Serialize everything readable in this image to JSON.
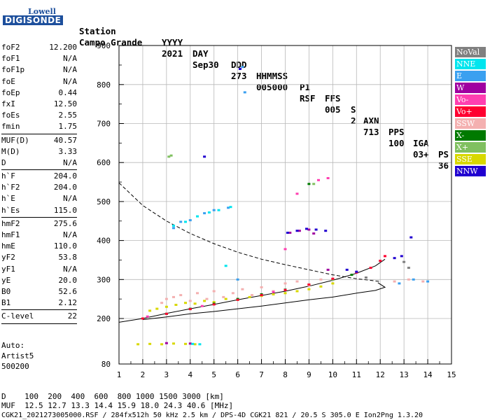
{
  "logo": {
    "line1": "Lowell",
    "line2": "DIGISONDE"
  },
  "header": {
    "row1": [
      "Station",
      "YYYY",
      "DAY",
      "DDD",
      "HHMMSS",
      "P1",
      "FFS",
      "S",
      "AXN",
      "PPS",
      "IGA",
      "PS"
    ],
    "row2": [
      "Campo Grande",
      "2021",
      "Sep30",
      "273",
      "005000",
      "RSF",
      "005",
      "2",
      "713",
      "100",
      "03+",
      "36"
    ]
  },
  "params": [
    {
      "k": "foF2",
      "v": "12.200"
    },
    {
      "k": "foF1",
      "v": "N/A"
    },
    {
      "k": "foF1p",
      "v": "N/A"
    },
    {
      "k": "foE",
      "v": "N/A"
    },
    {
      "k": "foEp",
      "v": "0.44"
    },
    {
      "k": "fxI",
      "v": "12.50"
    },
    {
      "k": "foEs",
      "v": "2.55"
    },
    {
      "k": "fmin",
      "v": "1.75"
    },
    {
      "sep": true
    },
    {
      "k": "MUF(D)",
      "v": "40.57"
    },
    {
      "k": "M(D)",
      "v": "3.33"
    },
    {
      "k": "D",
      "v": "N/A"
    },
    {
      "sep": true
    },
    {
      "k": "h`F",
      "v": "204.0"
    },
    {
      "k": "h`F2",
      "v": "204.0"
    },
    {
      "k": "h`E",
      "v": "N/A"
    },
    {
      "k": "h`Es",
      "v": "115.0"
    },
    {
      "sep": true
    },
    {
      "k": "hmF2",
      "v": "275.6"
    },
    {
      "k": "hmF1",
      "v": "N/A"
    },
    {
      "k": "hmE",
      "v": "110.0"
    },
    {
      "k": "yF2",
      "v": "53.8"
    },
    {
      "k": "yF1",
      "v": "N/A"
    },
    {
      "k": "yE",
      "v": "20.0"
    },
    {
      "k": "B0",
      "v": "52.6"
    },
    {
      "k": "B1",
      "v": "2.12"
    },
    {
      "sep": true
    },
    {
      "k": "C-level",
      "v": "22"
    },
    {
      "sep": true
    }
  ],
  "auto": {
    "line1": "Auto:",
    "line2": "Artist5",
    "line3": "500200"
  },
  "legend": [
    {
      "label": "NoVal",
      "color": "#808080"
    },
    {
      "label": "NNE",
      "color": "#00e5ee"
    },
    {
      "label": "E",
      "color": "#3aa0f0"
    },
    {
      "label": "W",
      "color": "#a000a0"
    },
    {
      "label": "Vo-",
      "color": "#ff3fb0"
    },
    {
      "label": "Vo+",
      "color": "#ff0030"
    },
    {
      "label": "SSW",
      "color": "#f4b0b0"
    },
    {
      "label": "X-",
      "color": "#007a00"
    },
    {
      "label": "X+",
      "color": "#80c060"
    },
    {
      "label": "SSE",
      "color": "#d8d800"
    },
    {
      "label": "NNW",
      "color": "#2000d0"
    }
  ],
  "footer": {
    "line1": "D    100  200  400  600  800 1000 1500 3000 [km]",
    "line2": "MUF  12.5 12.7 13.3 14.4 15.9 18.0 24.3 40.6 [MHz]",
    "line3": "CGK21_2021273005000.RSF / 284fx512h 50 kHz 2.5 km / DPS-4D CGK21 821 / 20.5 S 305.0 E Ion2Png 1.3.20"
  },
  "chart_data": {
    "type": "scatter",
    "x_ticks": [
      "1",
      "2",
      "3",
      "4",
      "5",
      "6",
      "7",
      "8",
      "9",
      "10",
      "11",
      "12",
      "13",
      "14",
      "15"
    ],
    "y_ticks": [
      "80",
      "200",
      "300",
      "400",
      "500",
      "600",
      "700",
      "800",
      "900"
    ],
    "xlim": [
      1,
      15
    ],
    "ylim": [
      80,
      900
    ],
    "grid": true,
    "series": [
      {
        "name": "SSW",
        "color": "#f4b0b0",
        "points": [
          [
            2.8,
            240
          ],
          [
            3.0,
            250
          ],
          [
            3.3,
            255
          ],
          [
            3.6,
            260
          ],
          [
            4.0,
            245
          ],
          [
            4.3,
            265
          ],
          [
            4.7,
            250
          ],
          [
            5.0,
            270
          ],
          [
            5.4,
            255
          ],
          [
            5.8,
            265
          ],
          [
            6.2,
            275
          ],
          [
            6.6,
            260
          ],
          [
            7.0,
            280
          ],
          [
            7.5,
            270
          ],
          [
            8.0,
            290
          ],
          [
            8.5,
            295
          ],
          [
            9.0,
            285
          ],
          [
            9.5,
            300
          ],
          [
            12.6,
            295
          ],
          [
            13.2,
            300
          ],
          [
            13.8,
            295
          ]
        ]
      },
      {
        "name": "SSE",
        "color": "#d8d800",
        "points": [
          [
            1.8,
            132
          ],
          [
            2.3,
            133
          ],
          [
            2.8,
            132
          ],
          [
            3.3,
            134
          ],
          [
            3.8,
            133
          ],
          [
            4.2,
            132
          ],
          [
            2.3,
            220
          ],
          [
            2.6,
            225
          ],
          [
            3.0,
            230
          ],
          [
            3.4,
            235
          ],
          [
            3.8,
            240
          ],
          [
            4.2,
            238
          ],
          [
            4.6,
            245
          ],
          [
            5.0,
            242
          ],
          [
            5.5,
            250
          ],
          [
            6.0,
            248
          ],
          [
            6.5,
            255
          ],
          [
            7.0,
            258
          ],
          [
            7.5,
            262
          ],
          [
            8.0,
            265
          ],
          [
            8.5,
            270
          ],
          [
            9.0,
            275
          ],
          [
            9.5,
            282
          ],
          [
            10.0,
            290
          ]
        ]
      },
      {
        "name": "X-",
        "color": "#007a00",
        "points": [
          [
            3.0,
            212
          ],
          [
            4.0,
            225
          ],
          [
            5.0,
            238
          ],
          [
            6.0,
            250
          ],
          [
            7.0,
            262
          ],
          [
            8.0,
            274
          ],
          [
            9.0,
            287
          ],
          [
            10.0,
            300
          ],
          [
            10.8,
            312
          ],
          [
            9.0,
            545
          ]
        ]
      },
      {
        "name": "X+",
        "color": "#80c060",
        "points": [
          [
            3.1,
            615
          ],
          [
            3.2,
            618
          ],
          [
            9.2,
            545
          ],
          [
            10.0,
            300
          ]
        ]
      },
      {
        "name": "Vo+",
        "color": "#ff0030",
        "points": [
          [
            2.0,
            200
          ],
          [
            3.0,
            212
          ],
          [
            4.0,
            224
          ],
          [
            5.0,
            236
          ],
          [
            6.0,
            248
          ],
          [
            7.0,
            260
          ],
          [
            8.0,
            273
          ],
          [
            9.0,
            287
          ],
          [
            10.0,
            302
          ],
          [
            11.0,
            318
          ],
          [
            11.6,
            330
          ],
          [
            12.0,
            348
          ],
          [
            12.2,
            360
          ]
        ]
      },
      {
        "name": "Vo-",
        "color": "#ff3fb0",
        "points": [
          [
            2.2,
            205
          ],
          [
            4.5,
            232
          ],
          [
            7.5,
            268
          ],
          [
            9.4,
            555
          ],
          [
            9.8,
            560
          ],
          [
            8.0,
            378
          ],
          [
            8.5,
            520
          ]
        ]
      },
      {
        "name": "W",
        "color": "#a000a0",
        "points": [
          [
            8.2,
            420
          ],
          [
            8.6,
            425
          ],
          [
            9.0,
            428
          ],
          [
            9.2,
            418
          ],
          [
            3.0,
            135
          ],
          [
            4.0,
            134
          ],
          [
            9.8,
            325
          ]
        ]
      },
      {
        "name": "E",
        "color": "#3aa0f0",
        "points": [
          [
            3.3,
            432
          ],
          [
            3.6,
            448
          ],
          [
            4.0,
            452
          ],
          [
            4.6,
            470
          ],
          [
            5.0,
            478
          ],
          [
            5.6,
            484
          ],
          [
            6.2,
            845
          ],
          [
            6.3,
            780
          ],
          [
            6.0,
            300
          ],
          [
            12.8,
            290
          ],
          [
            13.4,
            300
          ],
          [
            14.0,
            295
          ]
        ]
      },
      {
        "name": "NNE",
        "color": "#00e5ee",
        "points": [
          [
            3.3,
            438
          ],
          [
            3.8,
            448
          ],
          [
            4.3,
            462
          ],
          [
            4.8,
            472
          ],
          [
            5.2,
            478
          ],
          [
            5.7,
            486
          ],
          [
            5.5,
            335
          ],
          [
            4.1,
            133
          ],
          [
            4.4,
            132
          ]
        ]
      },
      {
        "name": "NNW",
        "color": "#2000d0",
        "points": [
          [
            8.1,
            420
          ],
          [
            8.5,
            425
          ],
          [
            8.9,
            430
          ],
          [
            9.3,
            428
          ],
          [
            9.7,
            425
          ],
          [
            10.6,
            325
          ],
          [
            11.0,
            320
          ],
          [
            12.6,
            355
          ],
          [
            12.9,
            360
          ],
          [
            13.3,
            408
          ],
          [
            4.6,
            615
          ],
          [
            6.1,
            840
          ]
        ]
      },
      {
        "name": "NoVal",
        "color": "#808080",
        "points": [
          [
            13.2,
            330
          ],
          [
            13.0,
            345
          ],
          [
            11.4,
            305
          ]
        ]
      }
    ],
    "curves": [
      {
        "name": "virtual-height trace",
        "style": "solid",
        "color": "#000",
        "points": [
          [
            1.0,
            190
          ],
          [
            2.0,
            200
          ],
          [
            3.0,
            213
          ],
          [
            4.0,
            225
          ],
          [
            5.0,
            236
          ],
          [
            6.0,
            248
          ],
          [
            7.0,
            259
          ],
          [
            8.0,
            270
          ],
          [
            9.0,
            283
          ],
          [
            10.0,
            298
          ],
          [
            11.0,
            316
          ],
          [
            11.8,
            335
          ],
          [
            12.2,
            352
          ]
        ]
      },
      {
        "name": "profile trace",
        "style": "solid",
        "color": "#000",
        "points": [
          [
            2.0,
            197
          ],
          [
            3.0,
            204
          ],
          [
            4.0,
            212
          ],
          [
            5.0,
            218
          ],
          [
            6.0,
            225
          ],
          [
            7.0,
            232
          ],
          [
            8.0,
            240
          ],
          [
            9.0,
            248
          ],
          [
            10.0,
            255
          ],
          [
            11.0,
            265
          ],
          [
            11.8,
            272
          ],
          [
            12.2,
            280
          ],
          [
            11.9,
            292
          ]
        ]
      },
      {
        "name": "MUF trace",
        "style": "dashed",
        "color": "#000",
        "points": [
          [
            1.0,
            548
          ],
          [
            2.0,
            490
          ],
          [
            3.0,
            450
          ],
          [
            4.0,
            418
          ],
          [
            5.0,
            392
          ],
          [
            6.0,
            370
          ],
          [
            7.0,
            352
          ],
          [
            8.0,
            338
          ],
          [
            9.0,
            325
          ],
          [
            10.0,
            312
          ],
          [
            11.0,
            302
          ],
          [
            12.0,
            295
          ]
        ]
      }
    ]
  }
}
